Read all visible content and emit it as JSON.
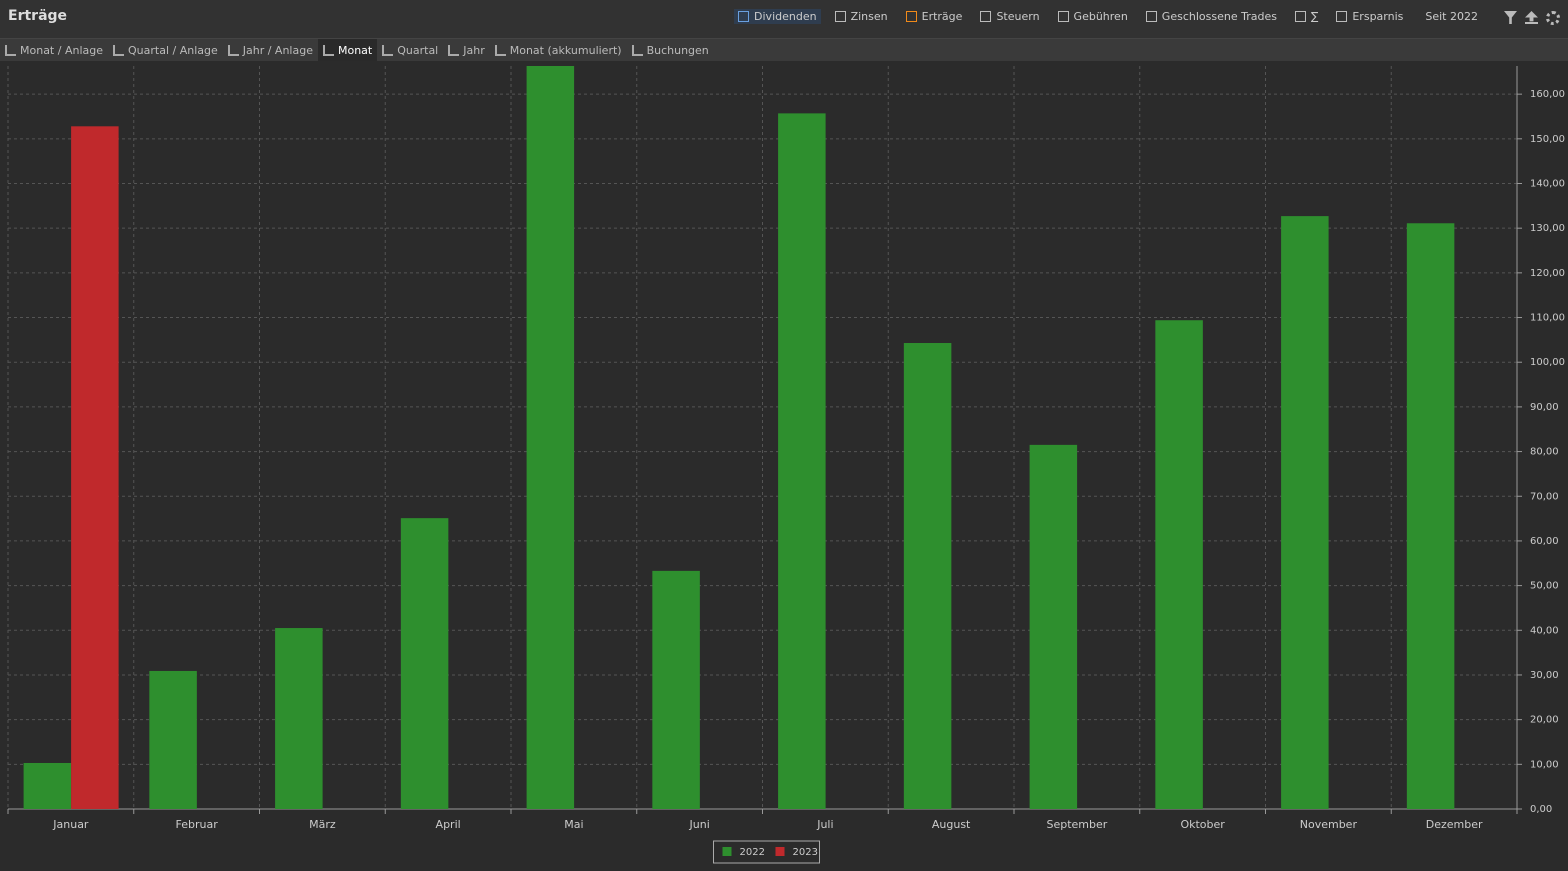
{
  "header": {
    "title": "Erträge",
    "filters": [
      "Dividenden",
      "Zinsen",
      "Erträge",
      "Steuern",
      "Gebühren",
      "Geschlossene Trades",
      "∑",
      "Ersparnis"
    ],
    "period": "Seit 2022"
  },
  "toolbar": {
    "tabs": [
      "Monat / Anlage",
      "Quartal / Anlage",
      "Jahr / Anlage",
      "Monat",
      "Quartal",
      "Jahr",
      "Monat (akkumuliert)",
      "Buchungen"
    ]
  },
  "chart_data": {
    "type": "bar",
    "categories": [
      "Januar",
      "Februar",
      "März",
      "April",
      "Mai",
      "Juni",
      "Juli",
      "August",
      "September",
      "Oktober",
      "November",
      "Dezember"
    ],
    "series": [
      {
        "name": "2022",
        "color": "#2e8f2e",
        "values": [
          10.3,
          30.9,
          40.5,
          65.1,
          166.3,
          53.3,
          155.7,
          104.3,
          81.5,
          109.4,
          132.7,
          131.1
        ]
      },
      {
        "name": "2023",
        "color": "#c0292c",
        "values": [
          152.8,
          null,
          null,
          null,
          null,
          null,
          null,
          null,
          null,
          null,
          null,
          null
        ]
      }
    ],
    "ylim": [
      0,
      166.3
    ],
    "yticks": [
      {
        "value": 0,
        "label": "0,00"
      },
      {
        "value": 10,
        "label": "10,00"
      },
      {
        "value": 20,
        "label": "20,00"
      },
      {
        "value": 30,
        "label": "30,00"
      },
      {
        "value": 40,
        "label": "40,00"
      },
      {
        "value": 50,
        "label": "50,00"
      },
      {
        "value": 60,
        "label": "60,00"
      },
      {
        "value": 70,
        "label": "70,00"
      },
      {
        "value": 80,
        "label": "80,00"
      },
      {
        "value": 90,
        "label": "90,00"
      },
      {
        "value": 100,
        "label": "100,00"
      },
      {
        "value": 110,
        "label": "110,00"
      },
      {
        "value": 120,
        "label": "120,00"
      },
      {
        "value": 130,
        "label": "130,00"
      },
      {
        "value": 140,
        "label": "140,00"
      },
      {
        "value": 150,
        "label": "150,00"
      },
      {
        "value": 160,
        "label": "160,00"
      }
    ],
    "grid": true
  }
}
